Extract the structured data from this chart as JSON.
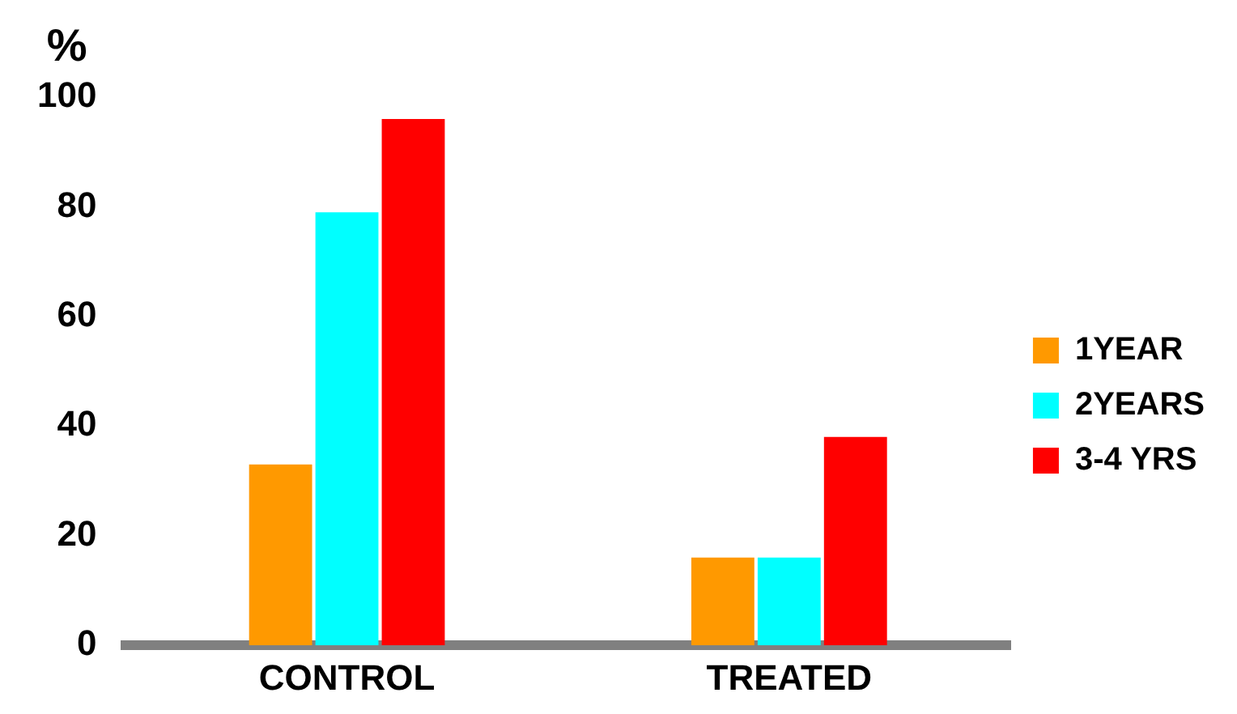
{
  "chart_data": {
    "type": "bar",
    "ylabel": "%",
    "categories": [
      "CONTROL",
      "TREATED"
    ],
    "series": [
      {
        "name": "1YEAR",
        "color": "#ff9900",
        "values": [
          33,
          16
        ]
      },
      {
        "name": "2YEARS",
        "color": "#00ffff",
        "values": [
          79,
          16
        ]
      },
      {
        "name": "3-4 YRS",
        "color": "#ff0000",
        "values": [
          96,
          38
        ]
      }
    ],
    "ylim": [
      0,
      100
    ],
    "yticks": [
      0,
      20,
      40,
      60,
      80,
      100
    ],
    "grid": false,
    "legend": "right"
  }
}
